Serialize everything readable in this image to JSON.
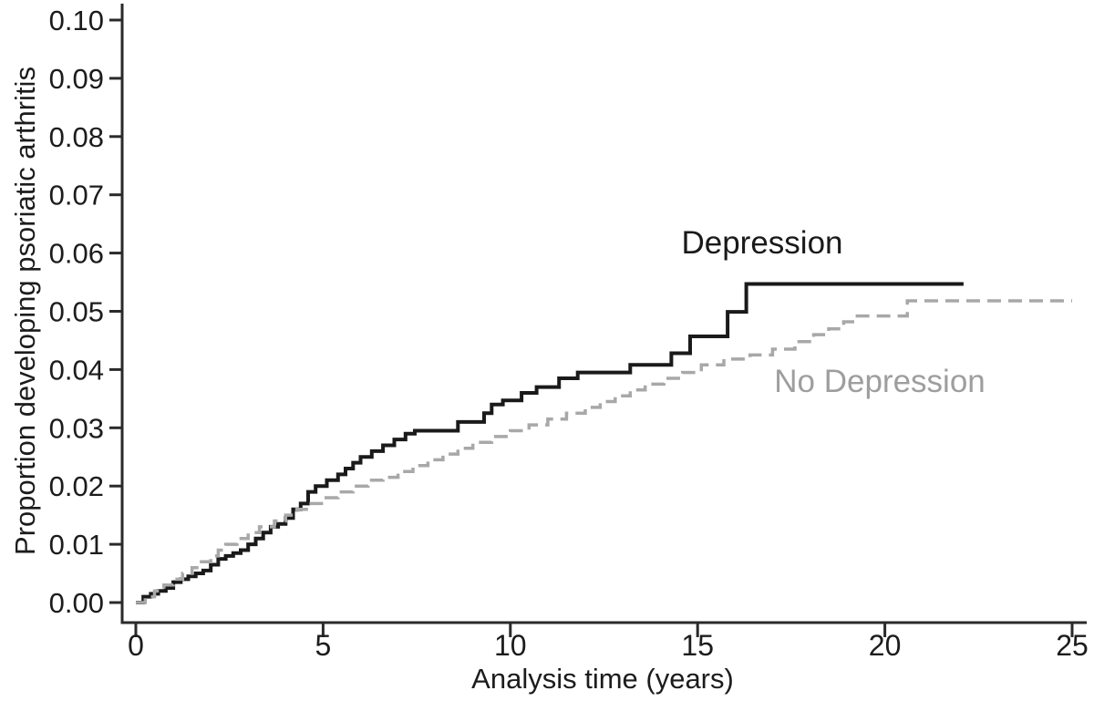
{
  "figure": {
    "background_color": "#ffffff",
    "axis_color": "#2a2a2a"
  },
  "chart_data": {
    "type": "line",
    "line_style": "step-after",
    "title": "",
    "xlabel": "Analysis time (years)",
    "ylabel": "Proportion developing psoriatic arthritis",
    "xlim": [
      0,
      25
    ],
    "ylim": [
      0,
      0.1
    ],
    "x_ticks": [
      0,
      5,
      10,
      15,
      20,
      25
    ],
    "x_tick_labels": [
      "0",
      "5",
      "10",
      "15",
      "20",
      "25"
    ],
    "y_ticks": [
      0,
      0.01,
      0.02,
      0.03,
      0.04,
      0.05,
      0.06,
      0.07,
      0.08,
      0.09,
      0.1
    ],
    "y_tick_labels": [
      "0.00",
      "0.01",
      "0.02",
      "0.03",
      "0.04",
      "0.05",
      "0.06",
      "0.07",
      "0.08",
      "0.09",
      "0.10"
    ],
    "grid": false,
    "legend_position": "inline-curve-annotations",
    "series": [
      {
        "name": "Depression",
        "color": "#1a1a1a",
        "stroke_width": 4,
        "dash": "",
        "points": [
          [
            0,
            0
          ],
          [
            0.2,
            0.001
          ],
          [
            0.4,
            0.0015
          ],
          [
            0.6,
            0.002
          ],
          [
            0.8,
            0.0025
          ],
          [
            1.0,
            0.0035
          ],
          [
            1.2,
            0.004
          ],
          [
            1.4,
            0.0045
          ],
          [
            1.6,
            0.005
          ],
          [
            1.8,
            0.0055
          ],
          [
            2.0,
            0.0065
          ],
          [
            2.2,
            0.0075
          ],
          [
            2.4,
            0.008
          ],
          [
            2.6,
            0.0085
          ],
          [
            2.8,
            0.009
          ],
          [
            3.0,
            0.01
          ],
          [
            3.2,
            0.011
          ],
          [
            3.4,
            0.012
          ],
          [
            3.6,
            0.013
          ],
          [
            3.8,
            0.0135
          ],
          [
            4.0,
            0.0145
          ],
          [
            4.2,
            0.016
          ],
          [
            4.4,
            0.017
          ],
          [
            4.6,
            0.019
          ],
          [
            4.8,
            0.02
          ],
          [
            5.1,
            0.021
          ],
          [
            5.4,
            0.022
          ],
          [
            5.6,
            0.023
          ],
          [
            5.8,
            0.024
          ],
          [
            6.0,
            0.025
          ],
          [
            6.3,
            0.026
          ],
          [
            6.6,
            0.027
          ],
          [
            6.9,
            0.028
          ],
          [
            7.2,
            0.029
          ],
          [
            7.45,
            0.0295
          ],
          [
            8.6,
            0.031
          ],
          [
            9.3,
            0.0325
          ],
          [
            9.5,
            0.034
          ],
          [
            9.8,
            0.0347
          ],
          [
            10.3,
            0.036
          ],
          [
            10.7,
            0.037
          ],
          [
            11.3,
            0.0385
          ],
          [
            11.8,
            0.0395
          ],
          [
            13.2,
            0.0408
          ],
          [
            14.3,
            0.0428
          ],
          [
            14.8,
            0.0457
          ],
          [
            15.8,
            0.0499
          ],
          [
            16.3,
            0.0547
          ],
          [
            22.1,
            0.0547
          ]
        ]
      },
      {
        "name": "No Depression",
        "color": "#a8a8a8",
        "stroke_width": 3.5,
        "dash": "15,8",
        "points": [
          [
            0,
            0
          ],
          [
            0.25,
            0.001
          ],
          [
            0.5,
            0.002
          ],
          [
            0.75,
            0.003
          ],
          [
            1.0,
            0.004
          ],
          [
            1.25,
            0.005
          ],
          [
            1.5,
            0.006
          ],
          [
            1.75,
            0.007
          ],
          [
            2.0,
            0.008
          ],
          [
            2.2,
            0.009
          ],
          [
            2.4,
            0.01
          ],
          [
            2.7,
            0.011
          ],
          [
            3.0,
            0.012
          ],
          [
            3.3,
            0.013
          ],
          [
            3.7,
            0.014
          ],
          [
            4.0,
            0.015
          ],
          [
            4.3,
            0.016
          ],
          [
            4.6,
            0.017
          ],
          [
            5.0,
            0.018
          ],
          [
            5.4,
            0.019
          ],
          [
            5.8,
            0.02
          ],
          [
            6.2,
            0.021
          ],
          [
            6.6,
            0.0215
          ],
          [
            7.0,
            0.0225
          ],
          [
            7.4,
            0.0235
          ],
          [
            7.8,
            0.0245
          ],
          [
            8.2,
            0.0255
          ],
          [
            8.6,
            0.0265
          ],
          [
            9.0,
            0.0275
          ],
          [
            9.5,
            0.0285
          ],
          [
            10.0,
            0.0295
          ],
          [
            10.5,
            0.0305
          ],
          [
            11.0,
            0.0315
          ],
          [
            11.5,
            0.0325
          ],
          [
            12.0,
            0.0335
          ],
          [
            12.4,
            0.0345
          ],
          [
            12.8,
            0.0355
          ],
          [
            13.2,
            0.0365
          ],
          [
            13.6,
            0.0375
          ],
          [
            14.1,
            0.0385
          ],
          [
            14.6,
            0.0395
          ],
          [
            15.1,
            0.0408
          ],
          [
            15.7,
            0.0418
          ],
          [
            16.4,
            0.0425
          ],
          [
            17.0,
            0.0435
          ],
          [
            17.6,
            0.0448
          ],
          [
            18.1,
            0.046
          ],
          [
            18.5,
            0.047
          ],
          [
            18.9,
            0.0482
          ],
          [
            19.2,
            0.0492
          ],
          [
            20.5,
            0.0492
          ],
          [
            20.6,
            0.0518
          ],
          [
            25.0,
            0.0518
          ]
        ]
      }
    ]
  }
}
